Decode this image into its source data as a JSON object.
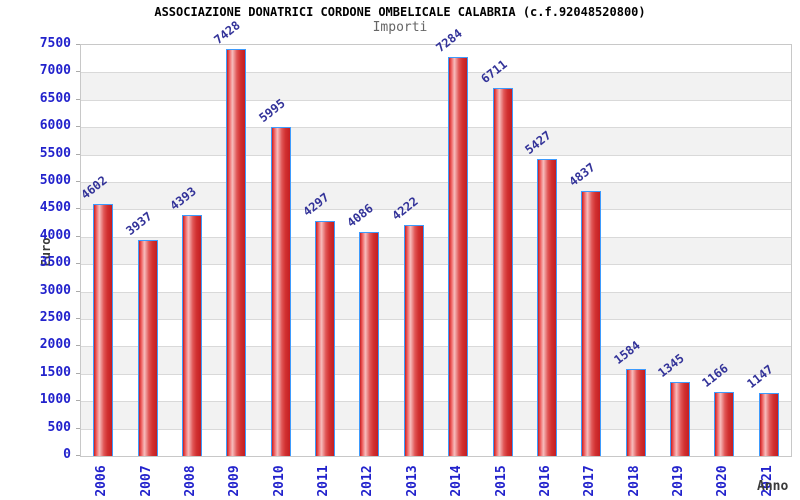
{
  "header": {
    "title": "ASSOCIAZIONE DONATRICI CORDONE OMBELICALE CALABRIA (c.f.92048520800)",
    "subtitle": "Importi"
  },
  "chart_data": {
    "type": "bar",
    "title": "ASSOCIAZIONE DONATRICI CORDONE OMBELICALE CALABRIA (c.f.92048520800)",
    "subtitle": "Importi",
    "xlabel": "Anno",
    "ylabel": "Euro",
    "categories": [
      "2006",
      "2007",
      "2008",
      "2009",
      "2010",
      "2011",
      "2012",
      "2013",
      "2014",
      "2015",
      "2016",
      "2017",
      "2018",
      "2019",
      "2020",
      "2021"
    ],
    "values": [
      4602,
      3937,
      4393,
      7428,
      5995,
      4297,
      4086,
      4222,
      7284,
      6711,
      5427,
      4837,
      1584,
      1345,
      1166,
      1147
    ],
    "yticks": [
      0,
      500,
      1000,
      1500,
      2000,
      2500,
      3000,
      3500,
      4000,
      4500,
      5000,
      5500,
      6000,
      6500,
      7000,
      7500
    ],
    "ylim": [
      0,
      7500
    ],
    "ytick_step": 500,
    "grid": true,
    "legend": "none",
    "value_labels_rotated": true,
    "colors": {
      "title": "#000000",
      "subtitle": "#666666",
      "axis_title": "#3a3a3a",
      "tick_label": "#2222cc",
      "value_label": "#333399",
      "bar_border": "#3d9bfd",
      "bar_dark": "#c41e22",
      "bar_mid": "#e05555",
      "bar_light": "#f7bdbd",
      "band_alt": "#f2f2f2",
      "gridline": "#d9d9d9",
      "plot_border": "#c8c8c8"
    }
  }
}
